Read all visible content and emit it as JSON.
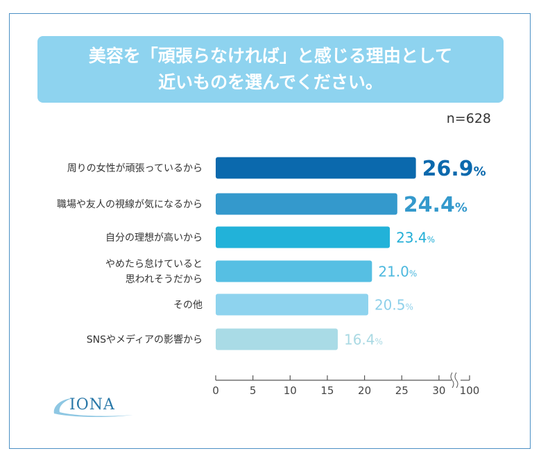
{
  "title": {
    "line1": "美容を「頑張らなければ」と感じる理由として",
    "line2": "近いものを選んでください。"
  },
  "sample_size": "n=628",
  "logo": "IONA",
  "chart_data": {
    "type": "bar",
    "orientation": "horizontal",
    "categories": [
      [
        "周りの女性が頑張っているから"
      ],
      [
        "職場や友人の視線が気になるから"
      ],
      [
        "自分の理想が高いから"
      ],
      [
        "やめたら怠けていると",
        "思われそうだから"
      ],
      [
        "その他"
      ],
      [
        "SNSやメディアの影響から"
      ]
    ],
    "values": [
      26.9,
      24.4,
      23.4,
      21.0,
      20.5,
      16.4
    ],
    "value_labels": [
      "26.9",
      "24.4",
      "23.4",
      "21.0",
      "20.5",
      "16.4"
    ],
    "unit": "%",
    "colors": [
      "#0b69ad",
      "#3499cc",
      "#22b2d9",
      "#56bfe3",
      "#8ed3ee",
      "#a9dbe6"
    ],
    "label_colors": [
      "#0b69ad",
      "#3499cc",
      "#22aed6",
      "#4cb8de",
      "#8ed0ea",
      "#a9d9e3"
    ],
    "x_ticks": [
      "0",
      "5",
      "10",
      "15",
      "20",
      "25",
      "30",
      "100"
    ],
    "xlim": [
      0,
      100
    ],
    "axis_break": [
      30,
      100
    ],
    "grid": false,
    "legend": "none"
  }
}
